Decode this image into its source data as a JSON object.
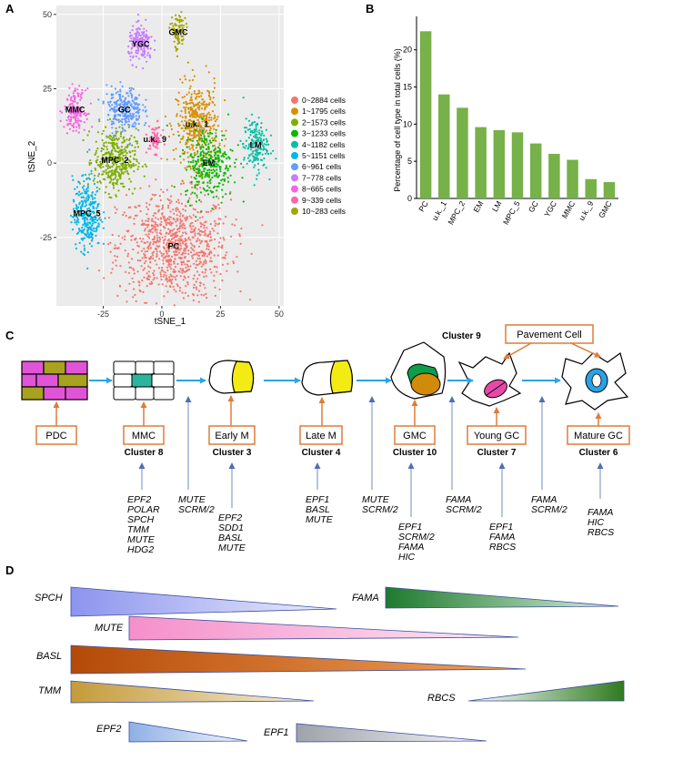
{
  "panel_labels": {
    "a": "A",
    "b": "B",
    "c": "C",
    "d": "D"
  },
  "chart_data": [
    {
      "type": "scatter",
      "xlabel": "tSNE_1",
      "ylabel": "tSNE_2",
      "xlim": [
        -45,
        52
      ],
      "ylim": [
        -48,
        53
      ],
      "xticks": [
        -25,
        0,
        25,
        50
      ],
      "xtick_labels": [
        "-25",
        "0",
        "25",
        "50"
      ],
      "yticks": [
        -25,
        0,
        25,
        50
      ],
      "ytick_labels": [
        "-25",
        "0",
        "25",
        "50"
      ],
      "grid": true,
      "legend_position": "right",
      "legend": [
        {
          "label": "0~2884 cells",
          "color": "#F3766E"
        },
        {
          "label": "1~1795 cells",
          "color": "#D89000"
        },
        {
          "label": "2~1573 cells",
          "color": "#7CAE00"
        },
        {
          "label": "3~1233 cells",
          "color": "#0CB702"
        },
        {
          "label": "4~1182 cells",
          "color": "#00BFA4"
        },
        {
          "label": "5~1151 cells",
          "color": "#00B8E7"
        },
        {
          "label": "6~961 cells",
          "color": "#619CFF"
        },
        {
          "label": "7~778 cells",
          "color": "#C77CFF"
        },
        {
          "label": "8~665 cells",
          "color": "#F564E3"
        },
        {
          "label": "9~339 cells",
          "color": "#FF65AC"
        },
        {
          "label": "10~283 cells",
          "color": "#A3A500"
        }
      ],
      "clusters": [
        {
          "label": "PC",
          "color": "#F3766E",
          "center": [
            5,
            -28
          ],
          "spread": [
            16,
            12
          ],
          "n": 900
        },
        {
          "label": "u.k._1",
          "color": "#D89000",
          "center": [
            15,
            13
          ],
          "spread": [
            6,
            9
          ],
          "n": 420
        },
        {
          "label": "MPC_2",
          "color": "#7CAE00",
          "center": [
            -20,
            1
          ],
          "spread": [
            6,
            7
          ],
          "n": 380
        },
        {
          "label": "EM",
          "color": "#0CB702",
          "center": [
            20,
            0
          ],
          "spread": [
            7,
            8
          ],
          "n": 320
        },
        {
          "label": "LM",
          "color": "#00BFA4",
          "center": [
            40,
            6
          ],
          "spread": [
            3.5,
            6
          ],
          "n": 180
        },
        {
          "label": "MPC_5",
          "color": "#00B8E7",
          "center": [
            -32,
            -17
          ],
          "spread": [
            4,
            8
          ],
          "n": 300
        },
        {
          "label": "GC",
          "color": "#619CFF",
          "center": [
            -16,
            18
          ],
          "spread": [
            5,
            5
          ],
          "n": 260
        },
        {
          "label": "YGC",
          "color": "#C77CFF",
          "center": [
            -9,
            40
          ],
          "spread": [
            3.5,
            4
          ],
          "n": 180
        },
        {
          "label": "MMC",
          "color": "#F564E3",
          "center": [
            -37,
            18
          ],
          "spread": [
            3,
            4.5
          ],
          "n": 160
        },
        {
          "label": "u.k._9",
          "color": "#FF65AC",
          "center": [
            -3,
            8
          ],
          "spread": [
            2,
            3
          ],
          "n": 70
        },
        {
          "label": "GMC",
          "color": "#A3A500",
          "center": [
            7,
            44
          ],
          "spread": [
            2.2,
            4.5
          ],
          "n": 90
        }
      ]
    },
    {
      "type": "bar",
      "ylabel": "Percentage of cell type in total cells (%)",
      "categories": [
        "PC",
        "u.k._1",
        "MPC_2",
        "EM",
        "LM",
        "MPC_5",
        "GC",
        "YGC",
        "MMC",
        "u.k._9",
        "GMC"
      ],
      "values": [
        22.5,
        14.0,
        12.2,
        9.6,
        9.2,
        8.9,
        7.4,
        6.0,
        5.2,
        2.6,
        2.2
      ],
      "ylim": [
        0,
        24.5
      ],
      "yticks": [
        0,
        5,
        10,
        15,
        20
      ],
      "ytick_labels": [
        "0",
        "5",
        "10",
        "15",
        "20"
      ],
      "color": "#77B149"
    }
  ],
  "lineage": {
    "stages": [
      {
        "label": "PDC",
        "cluster": ""
      },
      {
        "label": "MMC",
        "cluster": "Cluster 8"
      },
      {
        "label": "Early M",
        "cluster": "Cluster 3"
      },
      {
        "label": "Late M",
        "cluster": "Cluster 4"
      },
      {
        "label": "GMC",
        "cluster": "Cluster 10"
      },
      {
        "label": "Young GC",
        "cluster": "Cluster 7"
      },
      {
        "label": "Mature GC",
        "cluster": "Cluster 6"
      }
    ],
    "cluster9_label": "Cluster 9",
    "pavement_label": "Pavement Cell",
    "genes": [
      [
        "EPF2",
        "POLAR",
        "SPCH",
        "TMM",
        "MUTE",
        "HDG2"
      ],
      [
        "MUTE",
        "SCRM/2"
      ],
      [
        "EPF2",
        "SDD1",
        "BASL",
        "MUTE"
      ],
      [
        "EPF1",
        "BASL",
        "MUTE"
      ],
      [
        "MUTE",
        "SCRM/2"
      ],
      [
        "EPF1",
        "SCRM/2",
        "FAMA",
        "HIC"
      ],
      [
        "FAMA",
        "SCRM/2"
      ],
      [
        "EPF1",
        "FAMA",
        "RBCS"
      ],
      [
        "FAMA",
        "SCRM/2"
      ],
      [
        "FAMA",
        "HIC",
        "RBCS"
      ]
    ]
  },
  "gradients": [
    {
      "label": "SPCH",
      "from": "#8C94EE",
      "to": "#ECEEFC"
    },
    {
      "label": "FAMA",
      "from": "#1E7A2E",
      "to": "#D8EED9"
    },
    {
      "label": "MUTE",
      "from": "#F58FCB",
      "to": "#FDEAF4"
    },
    {
      "label": "BASL",
      "from": "#B54A08",
      "to": "#F2A25A"
    },
    {
      "label": "TMM",
      "from": "#C49B3A",
      "to": "#F6EED8"
    },
    {
      "label": "RBCS",
      "from": "#FFFFFF",
      "to": "#2F7A1F"
    },
    {
      "label": "EPF2",
      "from": "#8FB0E5",
      "to": "#F0F5FC"
    },
    {
      "label": "EPF1",
      "from": "#9EA2AA",
      "to": "#F5F6F8"
    }
  ]
}
